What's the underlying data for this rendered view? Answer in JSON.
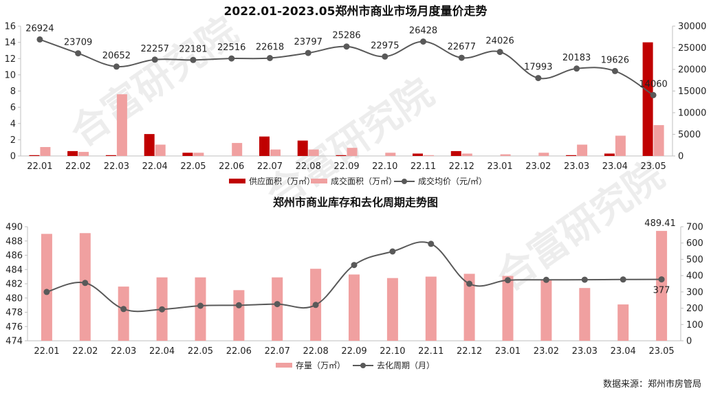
{
  "source": "数据来源：郑州市房管局",
  "watermark": "合富研究院",
  "chart_data": [
    {
      "type": "bar",
      "title": "2022.01-2023.05郑州市商业市场月度量价走势",
      "categories": [
        "22.01",
        "22.02",
        "22.03",
        "22.04",
        "22.05",
        "22.06",
        "22.07",
        "22.08",
        "22.09",
        "22.10",
        "22.11",
        "22.12",
        "23.01",
        "23.02",
        "23.03",
        "23.04",
        "23.05"
      ],
      "series": [
        {
          "name": "供应面积（万㎡）",
          "kind": "bar",
          "axis": "left",
          "color": "#c00000",
          "values": [
            0.1,
            0.6,
            0.1,
            2.7,
            0.4,
            0,
            2.4,
            1.9,
            0.1,
            0,
            0.3,
            0.6,
            0,
            0,
            0.1,
            0.3,
            14.0
          ]
        },
        {
          "name": "成交面积（万㎡）",
          "kind": "bar",
          "axis": "left",
          "color": "#f0a0a0",
          "values": [
            1.1,
            0.5,
            7.6,
            1.4,
            0.4,
            1.6,
            0.8,
            0.8,
            1.0,
            0.4,
            0.1,
            0.3,
            0.2,
            0.4,
            1.4,
            2.5,
            3.8
          ]
        },
        {
          "name": "成交均价（元/㎡）",
          "kind": "line",
          "axis": "right",
          "color": "#595959",
          "values": [
            26924,
            23709,
            20652,
            22257,
            22181,
            22516,
            22618,
            23797,
            25286,
            22975,
            26428,
            22677,
            24026,
            17993,
            20183,
            19626,
            14060
          ]
        }
      ],
      "ylim_left": [
        0,
        16
      ],
      "yticks_left": [
        "0",
        "2",
        "4",
        "6",
        "8",
        "10",
        "12",
        "14",
        "16"
      ],
      "ylim_right": [
        0,
        30000
      ],
      "yticks_right": [
        "0",
        "5000",
        "10000",
        "15000",
        "20000",
        "25000",
        "30000"
      ]
    },
    {
      "type": "bar",
      "title": "郑州市商业库存和去化周期走势图",
      "categories": [
        "22.01",
        "22.02",
        "22.03",
        "22.04",
        "22.05",
        "22.06",
        "22.07",
        "22.08",
        "22.09",
        "22.10",
        "22.11",
        "22.12",
        "23.01",
        "23.02",
        "23.03",
        "23.04",
        "23.05"
      ],
      "series": [
        {
          "name": "存量（万㎡）",
          "kind": "bar",
          "axis": "left",
          "color": "#f0a0a0",
          "values": [
            489.0,
            489.1,
            481.6,
            482.9,
            482.9,
            481.1,
            482.9,
            484.1,
            483.3,
            482.8,
            483.0,
            483.4,
            483.1,
            482.6,
            481.4,
            479.1,
            489.41
          ]
        },
        {
          "name": "去化周期（月）",
          "kind": "line",
          "axis": "right",
          "color": "#595959",
          "values": [
            300,
            355,
            195,
            193,
            215,
            218,
            225,
            220,
            465,
            548,
            595,
            350,
            372,
            374,
            375,
            376,
            377
          ]
        }
      ],
      "ylim_left": [
        474,
        490
      ],
      "yticks_left": [
        "474",
        "476",
        "478",
        "480",
        "482",
        "484",
        "486",
        "488",
        "490"
      ],
      "ylim_right": [
        0,
        700
      ],
      "yticks_right": [
        "0",
        "100",
        "200",
        "300",
        "400",
        "500",
        "600",
        "700"
      ],
      "annotations": {
        "last_bar": "489.41",
        "last_point": "377"
      }
    }
  ]
}
